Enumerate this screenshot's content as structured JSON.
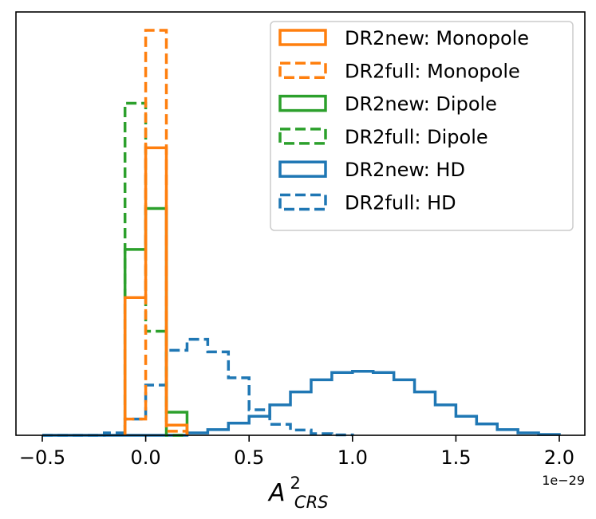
{
  "chart_data": {
    "type": "histogram",
    "title": "",
    "xlabel": {
      "base": "A",
      "superscript": "2",
      "subscript": "CRS"
    },
    "ylabel": "",
    "x_offset_label": "1e−29",
    "xlim": [
      -0.5,
      2.0
    ],
    "ylim": [
      0,
      1.0
    ],
    "x_ticks": [
      -0.5,
      0.0,
      0.5,
      1.0,
      1.5,
      2.0
    ],
    "x_tick_labels": [
      "−0.5",
      "0.0",
      "0.5",
      "1.0",
      "1.5",
      "2.0"
    ],
    "show_y_ticks": false,
    "legend_position": "upper-right",
    "series": [
      {
        "name": "DR2new: Monopole",
        "color": "#ff7f0e",
        "dashed": false,
        "edges": [
          -0.1,
          0.0,
          0.1,
          0.2
        ],
        "values": [
          0.34,
          0.71,
          0.025
        ]
      },
      {
        "name": "DR2full: Monopole",
        "color": "#ff7f0e",
        "dashed": true,
        "edges": [
          -0.1,
          0.0,
          0.1,
          0.2
        ],
        "values": [
          0.04,
          1.0,
          0.01
        ]
      },
      {
        "name": "DR2new: Dipole",
        "color": "#2ca02c",
        "dashed": false,
        "edges": [
          -0.1,
          0.0,
          0.1,
          0.2
        ],
        "values": [
          0.459,
          0.56,
          0.057
        ]
      },
      {
        "name": "DR2full: Dipole",
        "color": "#2ca02c",
        "dashed": true,
        "edges": [
          -0.1,
          0.0,
          0.1,
          0.2
        ],
        "values": [
          0.82,
          0.257,
          0.0
        ]
      },
      {
        "name": "DR2new: HD",
        "color": "#1f77b4",
        "dashed": false,
        "edges": [
          -0.5,
          -0.4,
          -0.3,
          -0.2,
          -0.1,
          0.0,
          0.1,
          0.2,
          0.3,
          0.4,
          0.5,
          0.6,
          0.7,
          0.8,
          0.9,
          1.0,
          1.1,
          1.2,
          1.3,
          1.4,
          1.5,
          1.6,
          1.7,
          1.8,
          1.9,
          2.0
        ],
        "values": [
          0,
          0,
          0,
          0,
          0,
          0,
          0,
          0.006,
          0.014,
          0.03,
          0.047,
          0.075,
          0.107,
          0.137,
          0.155,
          0.158,
          0.155,
          0.137,
          0.107,
          0.075,
          0.047,
          0.028,
          0.014,
          0.006,
          0.002
        ]
      },
      {
        "name": "DR2full: HD",
        "color": "#1f77b4",
        "dashed": true,
        "edges": [
          -0.5,
          -0.4,
          -0.3,
          -0.2,
          -0.1,
          0.0,
          0.1,
          0.2,
          0.3,
          0.4,
          0.5,
          0.6,
          0.7,
          0.8,
          0.9,
          1.0
        ],
        "values": [
          0,
          0,
          0,
          0.006,
          0.04,
          0.124,
          0.21,
          0.237,
          0.206,
          0.142,
          0.063,
          0.027,
          0.013,
          0.004,
          0.001
        ]
      }
    ]
  }
}
